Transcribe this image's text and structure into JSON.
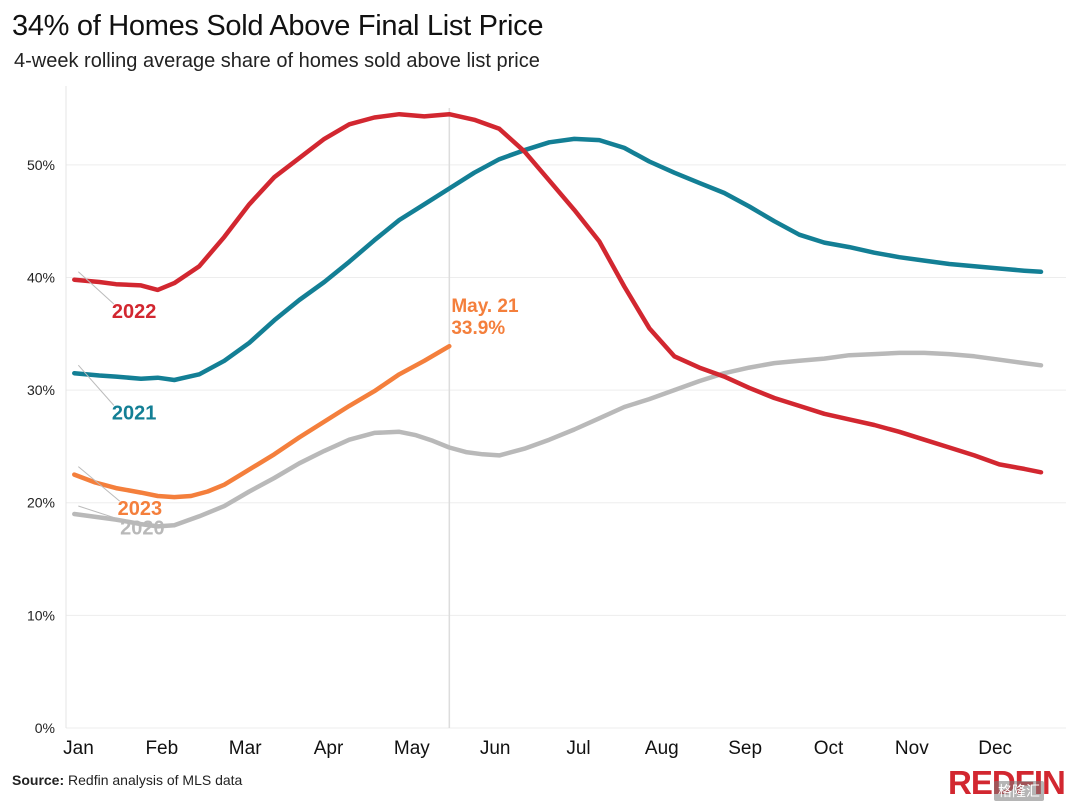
{
  "chart_data": {
    "type": "line",
    "title": "34% of Homes Sold Above Final List Price",
    "subtitle": "4-week rolling average share of homes sold above list price",
    "ylim": [
      0,
      57
    ],
    "yticks": [
      0,
      10,
      20,
      30,
      40,
      50
    ],
    "ytick_labels": [
      "0%",
      "10%",
      "20%",
      "30%",
      "40%",
      "50%"
    ],
    "xlim": [
      0,
      12
    ],
    "months": [
      "Jan",
      "Feb",
      "Mar",
      "Apr",
      "May",
      "Jun",
      "Jul",
      "Aug",
      "Sep",
      "Oct",
      "Nov",
      "Dec"
    ],
    "reference_line_x": 4.6,
    "series": [
      {
        "name": "2020",
        "label": "2020",
        "color": "#b9b9b9",
        "x": [
          0.1,
          0.4,
          0.6,
          0.9,
          1.1,
          1.3,
          1.6,
          1.9,
          2.2,
          2.5,
          2.8,
          3.1,
          3.4,
          3.7,
          4.0,
          4.2,
          4.4,
          4.6,
          4.8,
          5.0,
          5.2,
          5.5,
          5.8,
          6.1,
          6.4,
          6.7,
          7.0,
          7.3,
          7.6,
          7.9,
          8.2,
          8.5,
          8.8,
          9.1,
          9.4,
          9.7,
          10.0,
          10.3,
          10.6,
          10.9,
          11.2,
          11.5,
          11.7
        ],
        "values": [
          19.0,
          18.7,
          18.5,
          18.1,
          17.9,
          18.0,
          18.8,
          19.7,
          21.0,
          22.2,
          23.5,
          24.6,
          25.6,
          26.2,
          26.3,
          26.0,
          25.5,
          24.9,
          24.5,
          24.3,
          24.2,
          24.8,
          25.6,
          26.5,
          27.5,
          28.5,
          29.2,
          30.0,
          30.8,
          31.5,
          32.0,
          32.4,
          32.6,
          32.8,
          33.1,
          33.2,
          33.3,
          33.3,
          33.2,
          33.0,
          32.7,
          32.4,
          32.2
        ],
        "label_x": 0.65,
        "label_y": 17.2
      },
      {
        "name": "2021",
        "label": "2021",
        "color": "#137f95",
        "x": [
          0.1,
          0.4,
          0.6,
          0.9,
          1.1,
          1.3,
          1.6,
          1.9,
          2.2,
          2.5,
          2.8,
          3.1,
          3.4,
          3.7,
          4.0,
          4.3,
          4.6,
          4.9,
          5.2,
          5.5,
          5.8,
          6.1,
          6.4,
          6.7,
          7.0,
          7.3,
          7.6,
          7.9,
          8.2,
          8.5,
          8.8,
          9.1,
          9.4,
          9.7,
          10.0,
          10.3,
          10.6,
          10.9,
          11.2,
          11.5,
          11.7
        ],
        "values": [
          31.5,
          31.3,
          31.2,
          31.0,
          31.1,
          30.9,
          31.4,
          32.6,
          34.2,
          36.2,
          38.0,
          39.6,
          41.4,
          43.3,
          45.1,
          46.5,
          47.9,
          49.3,
          50.5,
          51.3,
          52.0,
          52.3,
          52.2,
          51.5,
          50.3,
          49.3,
          48.4,
          47.5,
          46.3,
          45.0,
          43.8,
          43.1,
          42.7,
          42.2,
          41.8,
          41.5,
          41.2,
          41.0,
          40.8,
          40.6,
          40.5
        ],
        "label_x": 0.55,
        "label_y": 27.4
      },
      {
        "name": "2022",
        "label": "2022",
        "color": "#d22730",
        "x": [
          0.1,
          0.4,
          0.6,
          0.9,
          1.1,
          1.3,
          1.6,
          1.9,
          2.2,
          2.5,
          2.8,
          3.1,
          3.4,
          3.7,
          4.0,
          4.3,
          4.6,
          4.9,
          5.2,
          5.5,
          5.8,
          6.1,
          6.4,
          6.7,
          7.0,
          7.3,
          7.6,
          7.9,
          8.2,
          8.5,
          8.8,
          9.1,
          9.4,
          9.7,
          10.0,
          10.3,
          10.6,
          10.9,
          11.2,
          11.5,
          11.7
        ],
        "values": [
          39.8,
          39.6,
          39.4,
          39.3,
          38.9,
          39.5,
          41.0,
          43.6,
          46.5,
          48.9,
          50.6,
          52.3,
          53.6,
          54.2,
          54.5,
          54.3,
          54.5,
          54.0,
          53.2,
          51.2,
          48.6,
          46.0,
          43.2,
          39.2,
          35.5,
          33.0,
          32.0,
          31.2,
          30.2,
          29.3,
          28.6,
          27.9,
          27.4,
          26.9,
          26.3,
          25.6,
          24.9,
          24.2,
          23.4,
          23.0,
          22.7
        ],
        "label_x": 0.55,
        "label_y": 36.4
      },
      {
        "name": "2023",
        "label": "2023",
        "color": "#f47f3c",
        "x": [
          0.1,
          0.35,
          0.6,
          0.9,
          1.1,
          1.3,
          1.5,
          1.7,
          1.9,
          2.1,
          2.3,
          2.5,
          2.8,
          3.1,
          3.4,
          3.7,
          4.0,
          4.3,
          4.6
        ],
        "values": [
          22.5,
          21.8,
          21.3,
          20.9,
          20.6,
          20.5,
          20.6,
          21.0,
          21.6,
          22.5,
          23.4,
          24.3,
          25.8,
          27.2,
          28.6,
          29.9,
          31.4,
          32.6,
          33.9
        ],
        "label_x": 0.62,
        "label_y": 18.9
      }
    ],
    "annotation": {
      "line1": "May. 21",
      "line2": "33.9%",
      "x": 4.6,
      "color": "#f47f3c"
    }
  },
  "footer": {
    "source_label": "Source:",
    "source_text": " Redfin analysis of MLS data",
    "logo_text": "REDFIN",
    "watermark_text": "格隆汇"
  }
}
